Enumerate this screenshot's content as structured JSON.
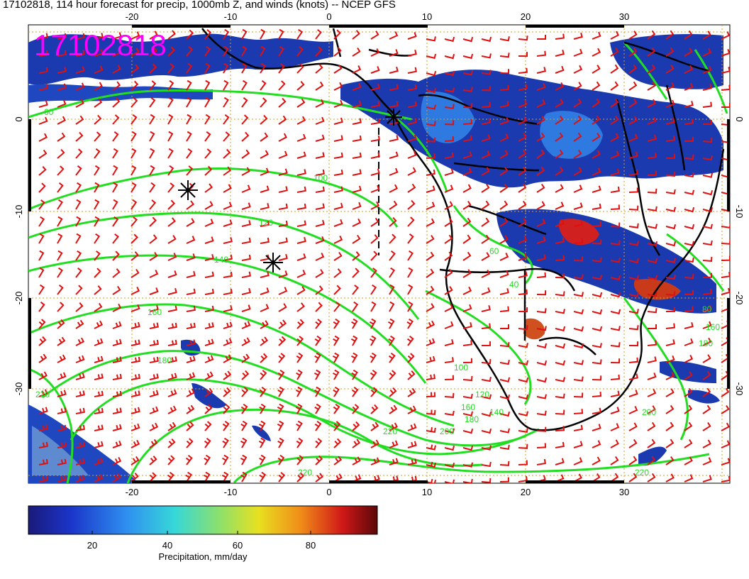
{
  "title": "17102818, 114 hour forecast for precip, 1000mb Z, and winds (knots) -- NCEP GFS",
  "stamp": "17102818",
  "axes": {
    "lon_ticks": [
      "-20",
      "-10",
      "0",
      "10",
      "20",
      "30"
    ],
    "lat_ticks": [
      "0",
      "-10",
      "-20",
      "-30"
    ]
  },
  "contour_labels": [
    "60",
    "100",
    "120",
    "140",
    "160",
    "180",
    "220",
    "60",
    "40",
    "100",
    "120",
    "140",
    "160",
    "180",
    "200",
    "220",
    "220",
    "80",
    "160",
    "180",
    "200",
    "220"
  ],
  "colorbar": {
    "label": "Precipitation, mm/day",
    "ticks": [
      "20",
      "40",
      "60",
      "80"
    ]
  },
  "colors": {
    "precip_low": "#1a2a8a",
    "precip_mid": "#2f6fd8",
    "precip_high": "#c01818",
    "contour": "#22dd22",
    "wind": "#e01010",
    "stamp": "#ff00ff",
    "grid": "#d4a020"
  }
}
